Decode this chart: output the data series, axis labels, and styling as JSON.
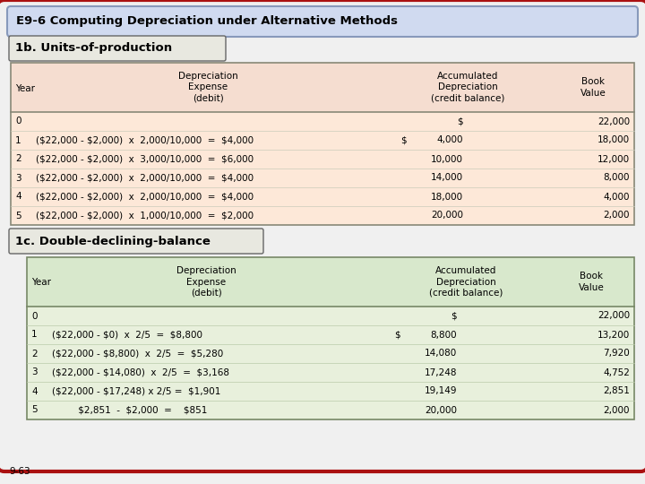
{
  "title": "E9-6 Computing Depreciation under Alternative Methods",
  "section1_title": "1b. Units-of-production",
  "section2_title": "1c. Double-declining-balance",
  "footer": "9-63",
  "bg_color": "#f0f0f0",
  "outer_border_color": "#aa1111",
  "outer_fill": "#f0f0f0",
  "title_bg": "#d0daf0",
  "title_border": "#8899bb",
  "section_bg": "#e8e8e0",
  "section_border": "#666666",
  "table1_header_bg": "#f5ddd0",
  "table1_data_bg": "#fde8d8",
  "table1_border": "#888877",
  "table2_header_bg": "#d8e8cc",
  "table2_data_bg": "#e8f0dc",
  "table2_border": "#778866",
  "text_color": "#000000",
  "t1_rows": [
    [
      "0",
      "",
      "",
      "$",
      "22,000"
    ],
    [
      "1",
      "($22,000 - $2,000)  x  2,000/10,000  =  $4,000",
      "$",
      "4,000",
      "18,000"
    ],
    [
      "2",
      "($22,000 - $2,000)  x  3,000/10,000  =  $6,000",
      "",
      "10,000",
      "12,000"
    ],
    [
      "3",
      "($22,000 - $2,000)  x  2,000/10,000  =  $4,000",
      "",
      "14,000",
      "8,000"
    ],
    [
      "4",
      "($22,000 - $2,000)  x  2,000/10,000  =  $4,000",
      "",
      "18,000",
      "4,000"
    ],
    [
      "5",
      "($22,000 - $2,000)  x  1,000/10,000  =  $2,000",
      "",
      "20,000",
      "2,000"
    ]
  ],
  "t2_rows": [
    [
      "0",
      "",
      "",
      "$",
      "22,000"
    ],
    [
      "1",
      "($22,000 - $0)  x  2/5  =  $8,800",
      "$",
      "8,800",
      "13,200"
    ],
    [
      "2",
      "($22,000 - $8,800)  x  2/5  =  $5,280",
      "",
      "14,080",
      "7,920"
    ],
    [
      "3",
      "($22,000 - $14,080)  x  2/5  =  $3,168",
      "",
      "17,248",
      "4,752"
    ],
    [
      "4",
      "($22,000 - $17,248) x 2/5 =  $1,901",
      "",
      "19,149",
      "2,851"
    ],
    [
      "5",
      "         $2,851  -  $2,000  =    $851",
      "",
      "20,000",
      "2,000"
    ]
  ]
}
